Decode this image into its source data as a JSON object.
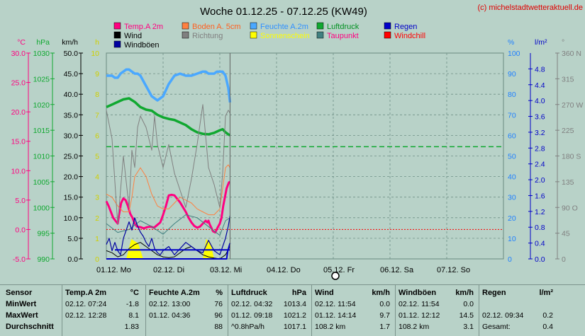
{
  "title": "Woche 01.12.25 - 07.12.25 (KW49)",
  "copyright": "(c) michelstadtwetteraktuell.de",
  "colors": {
    "temp": "#ff0080",
    "boden": "#ff8040",
    "feuchte": "#4aa8ff",
    "luftdruck": "#10a830",
    "wind": "#000000",
    "richtung": "#808080",
    "sonne": "#ffff00",
    "taupunkt": "#408080",
    "regen": "#0000c8",
    "windchill": "#ff0000",
    "windboeen": "#0000a0",
    "axis_temp": "#ff0080",
    "axis_hpa": "#10a830",
    "axis_kmh": "#000000",
    "axis_h": "#d0d000",
    "axis_pct": "#2080ff",
    "axis_rain": "#0000c8",
    "axis_dir": "#808080",
    "plot_bg": "#b8d2c8"
  },
  "legend": [
    {
      "label": "Temp.A 2m",
      "color": "#ff0080",
      "text_color": "#ff0080"
    },
    {
      "label": "Boden A. 5cm",
      "color": "#ff8040",
      "text_color": "#ff6020"
    },
    {
      "label": "Feuchte A.2m",
      "color": "#4aa8ff",
      "text_color": "#3090ff"
    },
    {
      "label": "Luftdruck",
      "color": "#10a830",
      "text_color": "#009020"
    },
    {
      "label": "Regen",
      "color": "#0000c8",
      "text_color": "#0000c8"
    },
    {
      "label": "Wind",
      "color": "#000000",
      "text_color": "#000000"
    },
    {
      "label": "Richtung",
      "color": "#808080",
      "text_color": "#808080"
    },
    {
      "label": "Sonnenschein",
      "color": "#ffff00",
      "text_color": "#ffff00"
    },
    {
      "label": "Taupunkt",
      "color": "#408080",
      "text_color": "#ff0080"
    },
    {
      "label": "Windchill",
      "color": "#ff0000",
      "text_color": "#ff0000"
    },
    {
      "label": "Windböen",
      "color": "#0000a0",
      "text_color": "#000000"
    }
  ],
  "chart_data": {
    "type": "line",
    "x_labels": [
      "01.12. Mo",
      "02.12. Di",
      "03.12. Mi",
      "04.12. Do",
      "05.12. Fr",
      "06.12. Sa",
      "07.12. So"
    ],
    "axes": {
      "temp_c": {
        "unit": "°C",
        "ticks": [
          "30.0",
          "25.0",
          "20.0",
          "15.0",
          "10.0",
          "5.0",
          "0.0",
          "-5.0"
        ],
        "range": [
          -5,
          30
        ]
      },
      "hpa": {
        "unit": "hPa",
        "ticks": [
          "1030",
          "1025",
          "1020",
          "1015",
          "1010",
          "1005",
          "1000",
          "995",
          "990"
        ],
        "range": [
          990,
          1030
        ]
      },
      "kmh": {
        "unit": "km/h",
        "ticks": [
          "50.0",
          "45.0",
          "40.0",
          "35.0",
          "30.0",
          "25.0",
          "20.0",
          "15.0",
          "10.0",
          "5.0",
          "0.0"
        ],
        "range": [
          0,
          50
        ]
      },
      "hours": {
        "unit": "h",
        "ticks": [
          "10",
          "9",
          "8",
          "7",
          "6",
          "5",
          "4",
          "3",
          "2",
          "1",
          "0"
        ],
        "range": [
          0,
          10
        ]
      },
      "percent": {
        "unit": "%",
        "ticks": [
          "100",
          "90",
          "80",
          "70",
          "60",
          "50",
          "40",
          "30",
          "20",
          "10",
          "0"
        ],
        "range": [
          0,
          100
        ]
      },
      "rain": {
        "unit": "l/m²",
        "ticks": [
          "4.8",
          "4.4",
          "4.0",
          "3.6",
          "3.2",
          "2.8",
          "2.4",
          "2.0",
          "1.6",
          "1.2",
          "0.8",
          "0.4",
          "0.0"
        ],
        "range": [
          0,
          5.2
        ]
      },
      "direction": {
        "unit": "°",
        "ticks": [
          "360 N",
          "315",
          "270 W",
          "225",
          "180 S",
          "135",
          "90 O",
          "45",
          "0"
        ],
        "range": [
          0,
          360
        ]
      }
    },
    "reference_lines": [
      {
        "name": "Luftdruck Mittel",
        "axis": "hpa",
        "value": 1011.8,
        "style": "dashed",
        "color": "#10a830"
      },
      {
        "name": "Frostgrenze",
        "axis": "temp_c",
        "value": 0,
        "style": "dotted",
        "color": "#ff0000"
      }
    ],
    "series": [
      {
        "name": "Temp.A 2m",
        "axis": "temp_c",
        "color": "#ff0080",
        "t": [
          0,
          0.04,
          0.08,
          0.12,
          0.16,
          0.2,
          0.22,
          0.26,
          0.3,
          0.34,
          0.38,
          0.42,
          0.46,
          0.5,
          0.54,
          0.6,
          0.66,
          0.72,
          0.78,
          0.84,
          0.9,
          0.95,
          1.0,
          1.05,
          1.1,
          1.15,
          1.2,
          1.3,
          1.4,
          1.45,
          1.5,
          1.55,
          1.6,
          1.65,
          1.7,
          1.75,
          1.78,
          1.8,
          1.82,
          1.85,
          1.88,
          1.92,
          1.96,
          2.0,
          2.03,
          2.06,
          2.1,
          2.12,
          2.14,
          2.16,
          2.18
        ],
        "values": [
          4.8,
          4.0,
          3.0,
          2.0,
          1.5,
          1.0,
          2.3,
          4.5,
          5.3,
          5.0,
          4.0,
          2.7,
          2.0,
          1.0,
          0.5,
          0.4,
          0.2,
          0.4,
          0.5,
          0.3,
          0.8,
          1.2,
          2.5,
          4.0,
          5.8,
          5.9,
          5.8,
          4.6,
          3.0,
          2.0,
          1.2,
          0.6,
          0.3,
          0.5,
          1.0,
          1.5,
          1.2,
          1.5,
          0.9,
          0.3,
          -0.3,
          -0.5,
          0.3,
          1.0,
          2.0,
          4.0,
          6.0,
          7.0,
          7.5,
          8.0,
          8.1
        ]
      },
      {
        "name": "Boden A. 5cm",
        "axis": "temp_c",
        "color": "#ff8040",
        "t": [
          0,
          0.1,
          0.2,
          0.3,
          0.4,
          0.45,
          0.5,
          0.6,
          0.7,
          0.8,
          0.9,
          1.0,
          1.1,
          1.2,
          1.3,
          1.4,
          1.5,
          1.6,
          1.7,
          1.8,
          1.9,
          2.0,
          2.05,
          2.1,
          2.15,
          2.18
        ],
        "values": [
          6.0,
          5.5,
          4.0,
          3.0,
          3.0,
          5.5,
          9.0,
          10.5,
          9.0,
          6.0,
          4.0,
          3.5,
          3.5,
          4.5,
          5.5,
          5.0,
          4.5,
          3.5,
          3.0,
          2.5,
          2.5,
          3.5,
          7.0,
          10.5,
          11.0,
          10.5
        ]
      },
      {
        "name": "Taupunkt",
        "axis": "temp_c",
        "color": "#408080",
        "t": [
          0,
          0.2,
          0.4,
          0.6,
          0.8,
          1.0,
          1.2,
          1.4,
          1.6,
          1.8,
          2.0,
          2.1,
          2.18
        ],
        "values": [
          1.0,
          -0.5,
          0.0,
          1.5,
          0.5,
          -0.8,
          1.0,
          2.5,
          2.0,
          0.5,
          -1.0,
          1.5,
          2.0
        ]
      },
      {
        "name": "Feuchte A.2m",
        "axis": "percent",
        "color": "#4aa8ff",
        "t": [
          0,
          0.05,
          0.1,
          0.15,
          0.2,
          0.25,
          0.3,
          0.35,
          0.4,
          0.45,
          0.5,
          0.55,
          0.6,
          0.7,
          0.8,
          0.9,
          1.0,
          1.1,
          1.2,
          1.3,
          1.4,
          1.5,
          1.6,
          1.7,
          1.75,
          1.8,
          1.9,
          1.95,
          2.0,
          2.05,
          2.1,
          2.15,
          2.18
        ],
        "values": [
          89,
          89,
          89,
          88,
          88,
          90,
          91,
          92,
          92,
          91,
          90,
          90,
          89,
          84,
          79,
          77,
          79,
          85,
          89,
          90,
          89,
          89,
          90,
          91,
          91,
          90,
          90,
          91,
          91,
          91,
          89,
          83,
          76
        ]
      },
      {
        "name": "Luftdruck",
        "axis": "hpa",
        "color": "#10a830",
        "t": [
          0,
          0.1,
          0.2,
          0.3,
          0.4,
          0.5,
          0.6,
          0.7,
          0.8,
          0.9,
          1.0,
          1.1,
          1.2,
          1.3,
          1.4,
          1.5,
          1.6,
          1.7,
          1.8,
          1.9,
          2.0,
          2.05,
          2.1,
          2.15,
          2.18
        ],
        "values": [
          1019.5,
          1020.0,
          1020.5,
          1021.0,
          1021.2,
          1020.5,
          1019.5,
          1019.0,
          1018.8,
          1018.0,
          1017.5,
          1017.2,
          1017.0,
          1016.5,
          1016.0,
          1015.2,
          1014.6,
          1014.3,
          1014.2,
          1014.5,
          1015.0,
          1015.2,
          1014.6,
          1014.2,
          1014.0
        ]
      },
      {
        "name": "Wind",
        "axis": "kmh",
        "color": "#000000",
        "t": [
          0,
          0.1,
          0.2,
          0.3,
          0.4,
          0.5,
          0.6,
          0.7,
          0.8,
          0.9,
          1.0,
          1.1,
          1.2,
          1.3,
          1.4,
          1.5,
          1.6,
          1.7,
          1.8,
          1.9,
          2.0,
          2.1,
          2.18
        ],
        "values": [
          2.0,
          1.5,
          0.5,
          1.0,
          2.5,
          3.5,
          4.0,
          3.0,
          2.0,
          1.0,
          0.5,
          0.3,
          0.5,
          1.5,
          2.5,
          3.0,
          2.0,
          1.0,
          0.5,
          0.2,
          0.0,
          1.0,
          3.0
        ]
      },
      {
        "name": "Windböen",
        "axis": "kmh",
        "color": "#0000a0",
        "t": [
          0,
          0.05,
          0.1,
          0.15,
          0.2,
          0.25,
          0.3,
          0.35,
          0.4,
          0.45,
          0.5,
          0.55,
          0.6,
          0.65,
          0.7,
          0.75,
          0.8,
          0.85,
          0.9,
          0.95,
          1.0,
          1.1,
          1.2,
          1.3,
          1.4,
          1.5,
          1.6,
          1.7,
          1.8,
          1.9,
          2.0,
          2.05,
          2.1,
          2.15,
          2.18
        ],
        "values": [
          3.5,
          5.0,
          2.0,
          4.0,
          2.0,
          1.0,
          5.0,
          7.0,
          9.0,
          7.0,
          10.0,
          8.0,
          6.5,
          5.5,
          4.0,
          3.0,
          5.0,
          2.5,
          1.5,
          1.0,
          2.0,
          3.0,
          1.0,
          2.5,
          4.0,
          3.0,
          2.0,
          1.5,
          4.5,
          2.0,
          1.0,
          3.0,
          5.0,
          8.0,
          10.5
        ]
      },
      {
        "name": "Richtung",
        "axis": "direction",
        "color": "#808080",
        "t": [
          0,
          0.1,
          0.2,
          0.3,
          0.4,
          0.45,
          0.5,
          0.55,
          0.6,
          0.7,
          0.8,
          0.85,
          0.9,
          1.0,
          1.1,
          1.2,
          1.3,
          1.4,
          1.5,
          1.6,
          1.7,
          1.8,
          1.9,
          2.0,
          2.05,
          2.1,
          2.15,
          2.18
        ],
        "values": [
          260,
          210,
          60,
          180,
          90,
          190,
          160,
          230,
          250,
          230,
          190,
          250,
          200,
          160,
          200,
          150,
          120,
          90,
          140,
          200,
          270,
          160,
          130,
          90,
          150,
          250,
          260,
          255
        ]
      },
      {
        "name": "Regen",
        "axis": "rain",
        "color": "#0000c8",
        "t": [
          0,
          0.2,
          0.4,
          0.6,
          0.8,
          1.0,
          1.2,
          1.4,
          1.6,
          1.8,
          2.0,
          2.12,
          2.14,
          2.18
        ],
        "values": [
          0,
          0,
          0,
          0,
          0,
          0,
          0,
          0,
          0,
          0,
          0,
          0,
          0.2,
          0.4
        ]
      }
    ]
  },
  "stats": {
    "row_labels": [
      "Sensor",
      "MinWert",
      "MaxWert",
      "Durchschnitt"
    ],
    "columns": [
      {
        "name": "Temp.A 2m",
        "unit": "°C",
        "rows": [
          [
            "02.12.  07:24",
            "-1.8"
          ],
          [
            "02.12.  12:28",
            "8.1"
          ],
          [
            "",
            "1.83"
          ]
        ]
      },
      {
        "name": "Feuchte A.2m",
        "unit": "%",
        "rows": [
          [
            "02.12.  13:00",
            "76"
          ],
          [
            "01.12.  04:36",
            "96"
          ],
          [
            "",
            "88"
          ]
        ]
      },
      {
        "name": "Luftdruck",
        "unit": "hPa",
        "rows": [
          [
            "02.12.  04:32",
            "1013.4"
          ],
          [
            "01.12.  09:18",
            "1021.2"
          ],
          [
            "^0.8hPa/h",
            "1017.1"
          ]
        ]
      },
      {
        "name": "Wind",
        "unit": "km/h",
        "rows": [
          [
            "02.12.  11:54",
            "0.0"
          ],
          [
            "01.12.  14:14",
            "9.7"
          ],
          [
            "108.2 km",
            "1.7"
          ]
        ]
      },
      {
        "name": "Windböen",
        "unit": "km/h",
        "rows": [
          [
            "02.12.  11:54",
            "0.0"
          ],
          [
            "01.12.  12:12",
            "14.5"
          ],
          [
            "108.2 km",
            "3.1"
          ]
        ]
      },
      {
        "name": "Regen",
        "unit": "l/m²",
        "rows": [
          [
            "",
            ""
          ],
          [
            "02.12.  09:34",
            "0.2"
          ],
          [
            "Gesamt:",
            "0.4"
          ]
        ]
      }
    ]
  }
}
